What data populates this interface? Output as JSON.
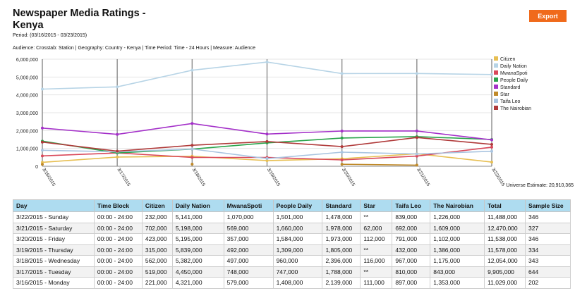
{
  "header": {
    "title": "Newspaper Media Ratings - Kenya",
    "export_label": "Export",
    "period": "Period: (03/16/2015 - 03/23/2015)",
    "audience": "Audience: Crosstab: Station | Geography: Country - Kenya | Time Period: Time - 24 Hours | Measure: Audience",
    "universe": "Universe Estimate: 20,910,365"
  },
  "colors": {
    "accent": "#f06a1b",
    "table_header": "#aedcf0"
  },
  "chart_data": {
    "type": "line",
    "x": [
      "3/16/2015",
      "3/17/2015",
      "3/18/2015",
      "3/19/2015",
      "3/20/2015",
      "3/21/2015",
      "3/22/2015"
    ],
    "y_ticks": [
      "6,000,000",
      "5,000,000",
      "4,000,000",
      "3,000,000",
      "2,000,000",
      "1,000,000",
      "0"
    ],
    "ylim": [
      0,
      6000000
    ],
    "grid": "vertical lines at each date",
    "legend_position": "right",
    "series": [
      {
        "name": "Citizen",
        "color": "#e7bf52",
        "values": [
          221000,
          519000,
          562000,
          315000,
          423000,
          702000,
          232000
        ]
      },
      {
        "name": "Daily Nation",
        "color": "#b7d4e6",
        "values": [
          4321000,
          4450000,
          5382000,
          5839000,
          5195000,
          5198000,
          5141000
        ]
      },
      {
        "name": "MwanaSpoti",
        "color": "#d9485a",
        "values": [
          579000,
          748000,
          497000,
          492000,
          357000,
          569000,
          1070000
        ]
      },
      {
        "name": "People Daily",
        "color": "#2aa44b",
        "values": [
          1408000,
          747000,
          960000,
          1309000,
          1584000,
          1660000,
          1501000
        ]
      },
      {
        "name": "Standard",
        "color": "#a431c9",
        "values": [
          2139000,
          1788000,
          2396000,
          1805000,
          1973000,
          1978000,
          1478000
        ]
      },
      {
        "name": "Star",
        "color": "#c08a2a",
        "values": [
          111000,
          null,
          116000,
          null,
          112000,
          62000,
          null
        ]
      },
      {
        "name": "Taifa Leo",
        "color": "#a9c4e0",
        "values": [
          897000,
          810000,
          967000,
          432000,
          791000,
          692000,
          839000
        ]
      },
      {
        "name": "The Nairobian",
        "color": "#b03a3a",
        "values": [
          1353000,
          843000,
          1175000,
          1386000,
          1102000,
          1609000,
          1226000
        ]
      }
    ]
  },
  "table": {
    "columns": [
      "Day",
      "Time Block",
      "Citizen",
      "Daily Nation",
      "MwanaSpoti",
      "People Daily",
      "Standard",
      "Star",
      "Taifa Leo",
      "The Nairobian",
      "Total",
      "Sample Size"
    ],
    "rows": [
      [
        "3/22/2015 - Sunday",
        "00:00 - 24:00",
        "232,000",
        "5,141,000",
        "1,070,000",
        "1,501,000",
        "1,478,000",
        "**",
        "839,000",
        "1,226,000",
        "11,488,000",
        "346"
      ],
      [
        "3/21/2015 - Saturday",
        "00:00 - 24:00",
        "702,000",
        "5,198,000",
        "569,000",
        "1,660,000",
        "1,978,000",
        "62,000",
        "692,000",
        "1,609,000",
        "12,470,000",
        "327"
      ],
      [
        "3/20/2015 - Friday",
        "00:00 - 24:00",
        "423,000",
        "5,195,000",
        "357,000",
        "1,584,000",
        "1,973,000",
        "112,000",
        "791,000",
        "1,102,000",
        "11,538,000",
        "346"
      ],
      [
        "3/19/2015 - Thursday",
        "00:00 - 24:00",
        "315,000",
        "5,839,000",
        "492,000",
        "1,309,000",
        "1,805,000",
        "**",
        "432,000",
        "1,386,000",
        "11,578,000",
        "334"
      ],
      [
        "3/18/2015 - Wednesday",
        "00:00 - 24:00",
        "562,000",
        "5,382,000",
        "497,000",
        "960,000",
        "2,396,000",
        "116,000",
        "967,000",
        "1,175,000",
        "12,054,000",
        "343"
      ],
      [
        "3/17/2015 - Tuesday",
        "00:00 - 24:00",
        "519,000",
        "4,450,000",
        "748,000",
        "747,000",
        "1,788,000",
        "**",
        "810,000",
        "843,000",
        "9,905,000",
        "644"
      ],
      [
        "3/16/2015 - Monday",
        "00:00 - 24:00",
        "221,000",
        "4,321,000",
        "579,000",
        "1,408,000",
        "2,139,000",
        "111,000",
        "897,000",
        "1,353,000",
        "11,029,000",
        "202"
      ]
    ]
  }
}
